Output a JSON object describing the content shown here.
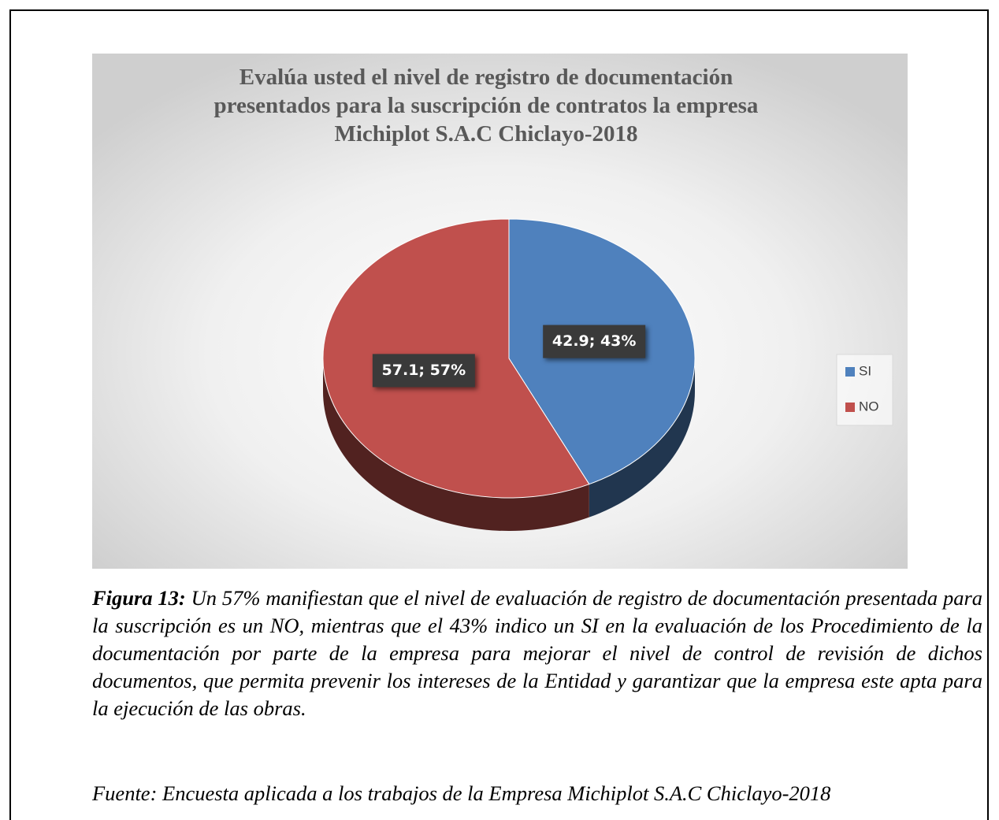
{
  "chart_data": {
    "type": "pie",
    "title": [
      "Evalúa usted el nivel de registro de documentación",
      "presentados para la suscripción de contratos la empresa",
      "Michiplot S.A.C Chiclayo-2018"
    ],
    "categories": [
      "SI",
      "NO"
    ],
    "values": [
      42.9,
      57.1
    ],
    "value_labels": [
      "42.9; 43%",
      "57.1; 57%"
    ],
    "colors": [
      "#4f81bd",
      "#c0504d"
    ],
    "legend": "right"
  },
  "caption": {
    "label": "Figura 13:",
    "text": "Un 57% manifiestan que el nivel de evaluación de registro de documentación presentada para la suscripción es un NO, mientras que el 43% indico un SI en la evaluación de los Procedimiento de la documentación por parte de la empresa para mejorar el nivel de control de revisión de dichos documentos, que permita prevenir los intereses de la Entidad y garantizar que la empresa este apta para la ejecución de las obras."
  },
  "source": "Fuente: Encuesta aplicada a los trabajos de la Empresa Michiplot S.A.C Chiclayo-2018"
}
